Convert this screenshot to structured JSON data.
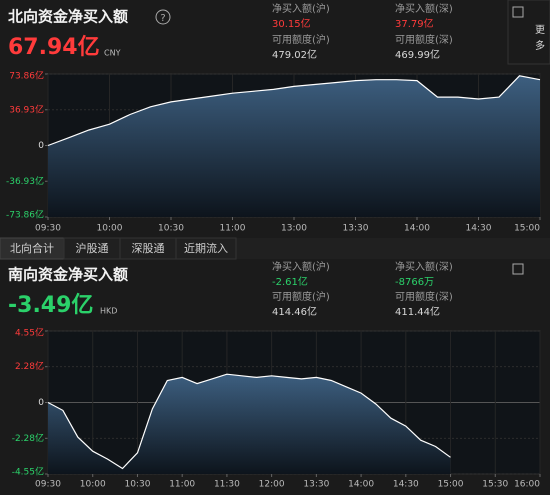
{
  "north": {
    "title": "北向资金净买入额",
    "value": "67.94亿",
    "unit": "CNY",
    "stats": [
      {
        "label": "净买入额(沪)",
        "value": "30.15亿"
      },
      {
        "label": "净买入额(深)",
        "value": "37.79亿"
      },
      {
        "label": "可用额度(沪)",
        "value": "479.02亿"
      },
      {
        "label": "可用额度(深)",
        "value": "469.99亿"
      }
    ]
  },
  "south": {
    "title": "南向资金净买入额",
    "value": "-3.49亿",
    "unit": "HKD",
    "stats": [
      {
        "label": "净买入额(沪)",
        "value": "-2.61亿"
      },
      {
        "label": "净买入额(深)",
        "value": "-8766万"
      },
      {
        "label": "可用额度(沪)",
        "value": "414.46亿"
      },
      {
        "label": "可用额度(深)",
        "value": "411.44亿"
      }
    ]
  },
  "more": [
    "更",
    "多"
  ],
  "tabs": [
    "北向合计",
    "沪股通",
    "深股通",
    "近期流入"
  ],
  "chart_data": [
    {
      "type": "area",
      "color": "#ffffff",
      "grid": true,
      "x": [
        0,
        10,
        20,
        30,
        40,
        50,
        60,
        70,
        80,
        90,
        100,
        110,
        120,
        130,
        140,
        150,
        160,
        170,
        180,
        190,
        200,
        210,
        220,
        230,
        240
      ],
      "values": [
        0,
        8,
        16,
        22,
        32,
        40,
        45,
        48,
        51,
        54,
        56,
        58,
        61,
        63,
        65,
        67,
        68,
        68,
        67,
        50,
        50,
        48,
        50,
        72,
        67.94
      ],
      "xlim": [
        0,
        240
      ],
      "ylim": [
        -73.86,
        73.86
      ],
      "xticks": [
        {
          "value": 0,
          "label": "09:30"
        },
        {
          "value": 30,
          "label": "10:00"
        },
        {
          "value": 60,
          "label": "10:30"
        },
        {
          "value": 90,
          "label": "11:00"
        },
        {
          "value": 120,
          "label": "13:00"
        },
        {
          "value": 150,
          "label": "13:30"
        },
        {
          "value": 180,
          "label": "14:00"
        },
        {
          "value": 210,
          "label": "14:30"
        },
        {
          "value": 240,
          "label": "15:00"
        }
      ],
      "yticks": [
        {
          "value": 73.86,
          "label": "73.86亿"
        },
        {
          "value": 36.93,
          "label": "36.93亿"
        },
        0,
        {
          "value": -36.93,
          "label": "-36.93亿"
        },
        {
          "value": -73.86,
          "label": "-73.86亿"
        }
      ]
    },
    {
      "type": "area",
      "color": "#ffffff",
      "grid": true,
      "x": [
        0,
        10,
        20,
        30,
        40,
        50,
        60,
        70,
        80,
        90,
        100,
        110,
        120,
        130,
        140,
        150,
        160,
        170,
        180,
        190,
        200,
        210,
        220,
        230,
        240,
        250,
        260,
        270
      ],
      "values": [
        0,
        -0.5,
        -2.2,
        -3.1,
        -3.6,
        -4.2,
        -3.2,
        -0.4,
        1.4,
        1.6,
        1.2,
        1.5,
        1.8,
        1.7,
        1.6,
        1.7,
        1.6,
        1.5,
        1.6,
        1.4,
        1.0,
        0.6,
        -0.1,
        -1.0,
        -1.5,
        -2.4,
        -2.8,
        -3.49
      ],
      "xlim": [
        0,
        330
      ],
      "ylim": [
        -4.55,
        4.55
      ],
      "xticks": [
        {
          "value": 0,
          "label": "09:30"
        },
        {
          "value": 30,
          "label": "10:00"
        },
        {
          "value": 60,
          "label": "10:30"
        },
        {
          "value": 90,
          "label": "11:00"
        },
        {
          "value": 120,
          "label": "11:30"
        },
        {
          "value": 150,
          "label": "12:00"
        },
        {
          "value": 180,
          "label": "13:30"
        },
        {
          "value": 210,
          "label": "14:00"
        },
        {
          "value": 240,
          "label": "14:30"
        },
        {
          "value": 270,
          "label": "15:00"
        },
        {
          "value": 300,
          "label": "15:30"
        },
        {
          "value": 330,
          "label": "16:00"
        }
      ],
      "yticks": [
        {
          "value": 4.55,
          "label": "4.55亿"
        },
        {
          "value": 2.28,
          "label": "2.28亿"
        },
        0,
        {
          "value": -2.28,
          "label": "-2.28亿"
        },
        {
          "value": -4.55,
          "label": "-4.55亿"
        }
      ]
    }
  ]
}
